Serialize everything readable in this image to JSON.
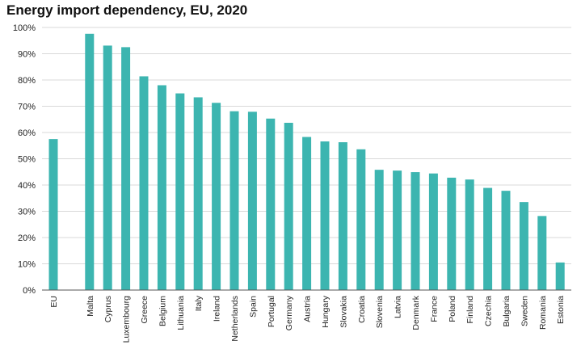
{
  "chart_data": {
    "type": "bar",
    "title": "Energy import dependency, EU, 2020",
    "xlabel": "",
    "ylabel": "",
    "ylim": [
      0,
      100
    ],
    "y_tick_values": [
      0,
      10,
      20,
      30,
      40,
      50,
      60,
      70,
      80,
      90,
      100
    ],
    "y_tick_labels": [
      "0%",
      "10%",
      "20%",
      "30%",
      "40%",
      "50%",
      "60%",
      "70%",
      "80%",
      "90%",
      "100%"
    ],
    "grid": true,
    "legend": "none",
    "bar_color": "#3cb5b0",
    "categories": [
      "EU",
      "Malta",
      "Cyprus",
      "Luxembourg",
      "Greece",
      "Belgium",
      "Lithuania",
      "Italy",
      "Ireland",
      "Netherlands",
      "Spain",
      "Portugal",
      "Germany",
      "Austria",
      "Hungary",
      "Slovakia",
      "Croatia",
      "Slovenia",
      "Latvia",
      "Denmark",
      "France",
      "Poland",
      "Finland",
      "Czechia",
      "Bulgaria",
      "Sweden",
      "Romania",
      "Estonia"
    ],
    "values": [
      57.5,
      97.6,
      93.1,
      92.5,
      81.4,
      78.0,
      74.9,
      73.4,
      71.3,
      68.1,
      67.9,
      65.3,
      63.7,
      58.3,
      56.6,
      56.3,
      53.6,
      45.8,
      45.5,
      44.9,
      44.4,
      42.8,
      42.1,
      38.9,
      37.8,
      33.5,
      28.2,
      10.5
    ]
  }
}
